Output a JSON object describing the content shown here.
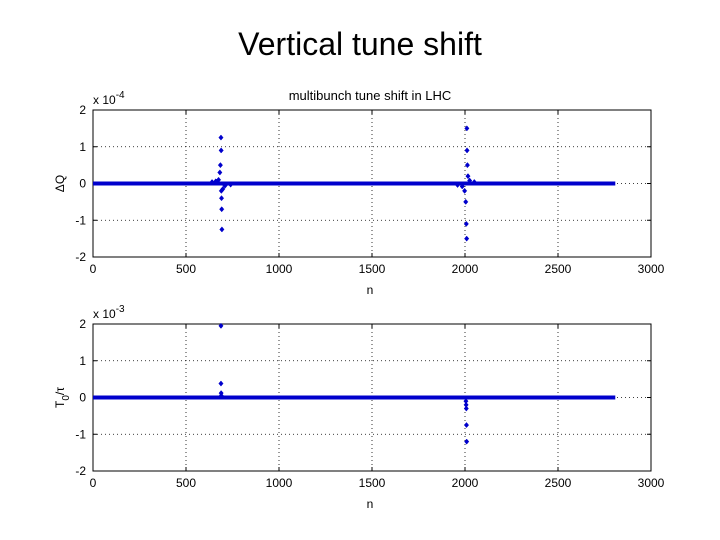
{
  "slide": {
    "title": "Vertical tune shift"
  },
  "chart_data": [
    {
      "type": "scatter",
      "title": "multibunch tune shift in LHC",
      "xlabel": "n",
      "ylabel": "ΔQ",
      "scale_text": "x 10",
      "scale_exp": "-4",
      "xlim": [
        0,
        3000
      ],
      "ylim": [
        -2,
        2
      ],
      "xticks": [
        "0",
        "500",
        "1000",
        "1500",
        "2000",
        "2500",
        "3000"
      ],
      "yticks": [
        "-2",
        "-1",
        "0",
        "1",
        "2"
      ],
      "grid": true,
      "color": "#0000cc",
      "series": [
        {
          "baseline": {
            "x_range": [
              0,
              2808
            ],
            "y": 0
          },
          "points": [
            {
              "x": 640,
              "y": 0.04
            },
            {
              "x": 660,
              "y": 0.06
            },
            {
              "x": 675,
              "y": 0.1
            },
            {
              "x": 682,
              "y": 0.3
            },
            {
              "x": 685,
              "y": 0.5
            },
            {
              "x": 688,
              "y": 1.25
            },
            {
              "x": 689,
              "y": 0.9
            },
            {
              "x": 690,
              "y": -0.2
            },
            {
              "x": 691,
              "y": -0.4
            },
            {
              "x": 692,
              "y": -0.7
            },
            {
              "x": 693,
              "y": -1.25
            },
            {
              "x": 698,
              "y": -0.15
            },
            {
              "x": 710,
              "y": -0.06
            },
            {
              "x": 740,
              "y": -0.03
            },
            {
              "x": 1960,
              "y": -0.04
            },
            {
              "x": 1985,
              "y": -0.08
            },
            {
              "x": 1998,
              "y": -0.2
            },
            {
              "x": 2004,
              "y": -0.5
            },
            {
              "x": 2007,
              "y": -1.1
            },
            {
              "x": 2009,
              "y": -1.5
            },
            {
              "x": 2010,
              "y": 1.5
            },
            {
              "x": 2011,
              "y": 0.9
            },
            {
              "x": 2013,
              "y": 0.5
            },
            {
              "x": 2016,
              "y": 0.2
            },
            {
              "x": 2025,
              "y": 0.08
            },
            {
              "x": 2050,
              "y": 0.04
            }
          ]
        }
      ]
    },
    {
      "type": "scatter",
      "title": "",
      "xlabel": "n",
      "ylabel": "T",
      "ylabel_sub": "0",
      "ylabel_tail": "/τ",
      "scale_text": "x 10",
      "scale_exp": "-3",
      "xlim": [
        0,
        3000
      ],
      "ylim": [
        -2,
        2
      ],
      "xticks": [
        "0",
        "500",
        "1000",
        "1500",
        "2000",
        "2500",
        "3000"
      ],
      "yticks": [
        "-2",
        "-1",
        "0",
        "1",
        "2"
      ],
      "grid": true,
      "color": "#0000cc",
      "series": [
        {
          "baseline": {
            "x_range": [
              0,
              2808
            ],
            "y": 0
          },
          "points": [
            {
              "x": 688,
              "y": 1.95
            },
            {
              "x": 688,
              "y": 0.38
            },
            {
              "x": 689,
              "y": 0.12
            },
            {
              "x": 690,
              "y": 0.05
            },
            {
              "x": 2005,
              "y": -0.1
            },
            {
              "x": 2006,
              "y": -0.2
            },
            {
              "x": 2007,
              "y": -0.3
            },
            {
              "x": 2008,
              "y": -0.75
            },
            {
              "x": 2009,
              "y": -1.2
            }
          ]
        }
      ]
    }
  ]
}
